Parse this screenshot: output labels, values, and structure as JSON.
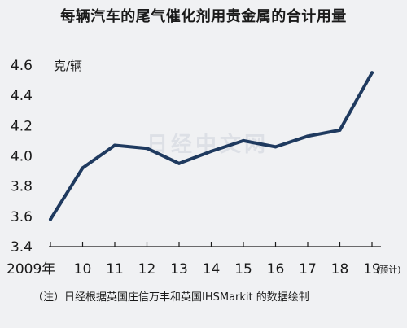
{
  "chart_data": {
    "type": "line",
    "title": "每辆汽车的尾气催化剂用贵金属的合计用量",
    "ylabel": "克/辆",
    "x": [
      "2009年",
      "10",
      "11",
      "12",
      "13",
      "14",
      "15",
      "16",
      "17",
      "18",
      "19"
    ],
    "ytick_labels": [
      "3.4",
      "3.6",
      "3.8",
      "4.0",
      "4.2",
      "4.4",
      "4.6"
    ],
    "ylim": [
      3.4,
      4.6
    ],
    "grid": false,
    "series": [
      {
        "values": [
          3.58,
          3.92,
          4.07,
          4.05,
          3.95,
          4.03,
          4.1,
          4.06,
          4.13,
          4.17,
          4.55
        ]
      }
    ],
    "estimate_label": "(预计)",
    "watermark": "日经中文网",
    "note": "（注）日经根据英国庄信万丰和英国IHSMarkit 的数据绘制",
    "line_color": "#1f3a5f"
  }
}
